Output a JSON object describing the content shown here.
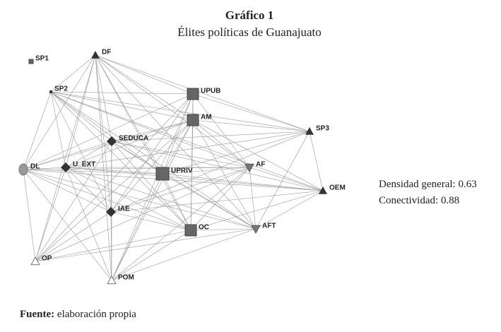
{
  "header": {
    "title": "Gráfico 1",
    "subtitle": "Élites políticas de Guanajuato"
  },
  "nodes": [
    {
      "label": "SP1"
    },
    {
      "label": "DF"
    },
    {
      "label": "SP2"
    },
    {
      "label": "UPUB"
    },
    {
      "label": "AM"
    },
    {
      "label": "SEDUCA"
    },
    {
      "label": "SP3"
    },
    {
      "label": "DL"
    },
    {
      "label": "U_EXT"
    },
    {
      "label": "UPRIV"
    },
    {
      "label": "AF"
    },
    {
      "label": "OEM"
    },
    {
      "label": "IAE"
    },
    {
      "label": "OC"
    },
    {
      "label": "AFT"
    },
    {
      "label": "OP"
    },
    {
      "label": "POM"
    }
  ],
  "stats": [
    {
      "label": "Densidad general:",
      "value": 0.63
    },
    {
      "label": "Conectividad:",
      "value": 0.88
    }
  ],
  "source": {
    "label": "Fuente:",
    "text": "elaboración propia"
  }
}
